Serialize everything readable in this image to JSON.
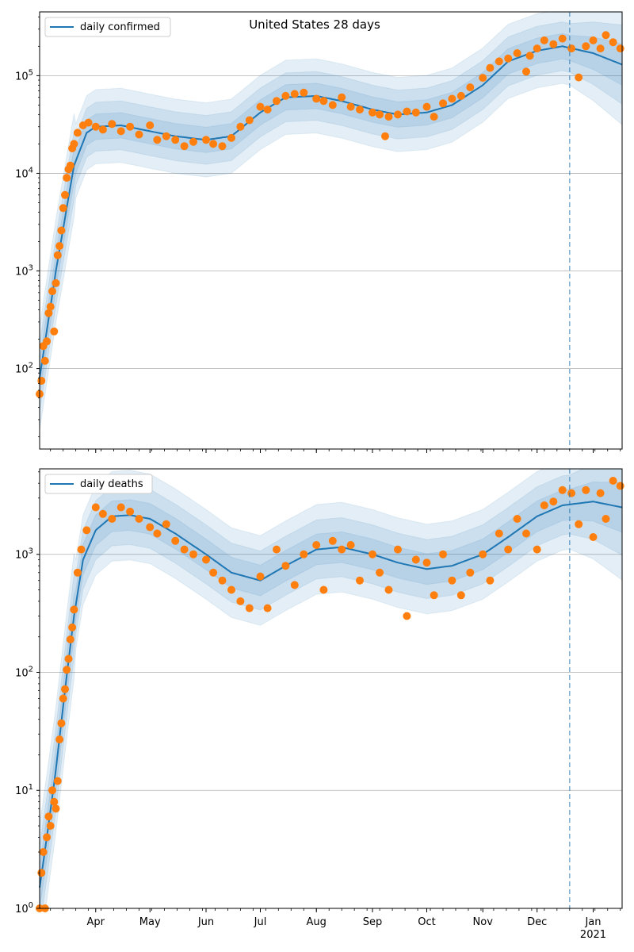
{
  "figure": {
    "title": "United States 28 days"
  },
  "chart_data": [
    {
      "type": "scatter",
      "title": "United States 28 days",
      "yscale": "log",
      "ylim": [
        15,
        450000
      ],
      "xlim": [
        "2020-03-01",
        "2021-01-17"
      ],
      "y_ticks": [
        100,
        1000,
        10000,
        100000
      ],
      "y_tick_labels": [
        {
          "base": "10",
          "exp": "2"
        },
        {
          "base": "10",
          "exp": "3"
        },
        {
          "base": "10",
          "exp": "4"
        },
        {
          "base": "10",
          "exp": "5"
        }
      ],
      "grid": "horizontal",
      "legend": {
        "entry": "daily confirmed",
        "placement": "top-left"
      },
      "forecast_start": "2020-12-19",
      "model_line": {
        "name": "daily confirmed",
        "color": "#1f77b4",
        "x": [
          "2020-03-01",
          "2020-03-10",
          "2020-03-20",
          "2020-03-27",
          "2020-04-01",
          "2020-04-15",
          "2020-05-01",
          "2020-05-15",
          "2020-06-01",
          "2020-06-15",
          "2020-07-01",
          "2020-07-15",
          "2020-08-01",
          "2020-08-15",
          "2020-09-01",
          "2020-09-15",
          "2020-10-01",
          "2020-10-15",
          "2020-11-01",
          "2020-11-15",
          "2020-12-01",
          "2020-12-15",
          "2021-01-01",
          "2021-01-17"
        ],
        "y": [
          80,
          1000,
          12000,
          26000,
          30000,
          31000,
          27000,
          24000,
          22000,
          24000,
          42000,
          60000,
          62000,
          55000,
          45000,
          40000,
          42000,
          50000,
          80000,
          140000,
          180000,
          200000,
          170000,
          130000
        ]
      },
      "points": {
        "color": "#ff7f0e",
        "x": [
          "2020-03-01",
          "2020-03-02",
          "2020-03-03",
          "2020-03-04",
          "2020-03-05",
          "2020-03-06",
          "2020-03-07",
          "2020-03-08",
          "2020-03-09",
          "2020-03-10",
          "2020-03-11",
          "2020-03-12",
          "2020-03-13",
          "2020-03-14",
          "2020-03-15",
          "2020-03-16",
          "2020-03-17",
          "2020-03-18",
          "2020-03-19",
          "2020-03-20",
          "2020-03-22",
          "2020-03-25",
          "2020-03-28",
          "2020-04-01",
          "2020-04-05",
          "2020-04-10",
          "2020-04-15",
          "2020-04-20",
          "2020-04-25",
          "2020-05-01",
          "2020-05-05",
          "2020-05-10",
          "2020-05-15",
          "2020-05-20",
          "2020-05-25",
          "2020-06-01",
          "2020-06-05",
          "2020-06-10",
          "2020-06-15",
          "2020-06-20",
          "2020-06-25",
          "2020-07-01",
          "2020-07-05",
          "2020-07-10",
          "2020-07-15",
          "2020-07-20",
          "2020-07-25",
          "2020-08-01",
          "2020-08-05",
          "2020-08-10",
          "2020-08-15",
          "2020-08-20",
          "2020-08-25",
          "2020-09-01",
          "2020-09-05",
          "2020-09-08",
          "2020-09-10",
          "2020-09-15",
          "2020-09-20",
          "2020-09-25",
          "2020-10-01",
          "2020-10-05",
          "2020-10-10",
          "2020-10-15",
          "2020-10-20",
          "2020-10-25",
          "2020-11-01",
          "2020-11-05",
          "2020-11-10",
          "2020-11-15",
          "2020-11-20",
          "2020-11-25",
          "2020-11-27",
          "2020-12-01",
          "2020-12-05",
          "2020-12-10",
          "2020-12-15",
          "2020-12-20",
          "2020-12-24",
          "2020-12-28",
          "2021-01-01",
          "2021-01-05",
          "2021-01-08",
          "2021-01-12",
          "2021-01-16"
        ],
        "y": [
          55,
          75,
          170,
          120,
          190,
          370,
          430,
          620,
          240,
          750,
          1450,
          1800,
          2600,
          4400,
          6000,
          9000,
          11000,
          12000,
          18000,
          20000,
          26000,
          31000,
          33000,
          30000,
          28000,
          32000,
          27000,
          30000,
          25000,
          31000,
          22000,
          24000,
          22000,
          19000,
          21000,
          22000,
          20000,
          19000,
          23000,
          30000,
          35000,
          48000,
          45000,
          55000,
          62000,
          65000,
          67000,
          58000,
          55000,
          50000,
          60000,
          48000,
          45000,
          42000,
          40000,
          24000,
          38000,
          40000,
          43000,
          42000,
          48000,
          38000,
          52000,
          58000,
          62000,
          76000,
          95000,
          120000,
          140000,
          150000,
          170000,
          110000,
          160000,
          190000,
          230000,
          210000,
          240000,
          190000,
          96000,
          200000,
          230000,
          190000,
          260000,
          220000,
          190000
        ]
      }
    },
    {
      "type": "scatter",
      "yscale": "log",
      "ylim": [
        1,
        5300
      ],
      "xlim": [
        "2020-03-01",
        "2021-01-17"
      ],
      "y_ticks": [
        1,
        10,
        100,
        1000
      ],
      "y_tick_labels": [
        {
          "base": "10",
          "exp": "0"
        },
        {
          "base": "10",
          "exp": "1"
        },
        {
          "base": "10",
          "exp": "2"
        },
        {
          "base": "10",
          "exp": "3"
        }
      ],
      "x_ticks": [
        "2020-04-01",
        "2020-05-01",
        "2020-06-01",
        "2020-07-01",
        "2020-08-01",
        "2020-09-01",
        "2020-10-01",
        "2020-11-01",
        "2020-12-01",
        "2021-01-01"
      ],
      "x_tick_labels": [
        "Apr",
        "May",
        "Jun",
        "Jul",
        "Aug",
        "Sep",
        "Oct",
        "Nov",
        "Dec",
        "Jan"
      ],
      "x_year_label": "2021",
      "grid": "horizontal",
      "legend": {
        "entry": "daily deaths",
        "placement": "top-left"
      },
      "forecast_start": "2020-12-19",
      "model_line": {
        "name": "daily deaths",
        "color": "#1f77b4",
        "x": [
          "2020-03-01",
          "2020-03-05",
          "2020-03-10",
          "2020-03-15",
          "2020-03-20",
          "2020-03-25",
          "2020-04-01",
          "2020-04-10",
          "2020-04-20",
          "2020-05-01",
          "2020-05-15",
          "2020-06-01",
          "2020-06-15",
          "2020-07-01",
          "2020-07-15",
          "2020-08-01",
          "2020-08-15",
          "2020-09-01",
          "2020-09-15",
          "2020-10-01",
          "2020-10-15",
          "2020-11-01",
          "2020-11-15",
          "2020-12-01",
          "2020-12-15",
          "2021-01-01",
          "2021-01-17"
        ],
        "y": [
          1.5,
          4,
          15,
          70,
          300,
          900,
          1600,
          2100,
          2150,
          2000,
          1500,
          1000,
          700,
          600,
          800,
          1100,
          1150,
          1000,
          850,
          750,
          800,
          1000,
          1400,
          2100,
          2600,
          2800,
          2500
        ]
      },
      "points": {
        "color": "#ff7f0e",
        "x": [
          "2020-03-01",
          "2020-03-02",
          "2020-03-03",
          "2020-03-04",
          "2020-03-05",
          "2020-03-06",
          "2020-03-07",
          "2020-03-08",
          "2020-03-09",
          "2020-03-10",
          "2020-03-11",
          "2020-03-12",
          "2020-03-13",
          "2020-03-14",
          "2020-03-15",
          "2020-03-16",
          "2020-03-17",
          "2020-03-18",
          "2020-03-19",
          "2020-03-20",
          "2020-03-22",
          "2020-03-24",
          "2020-03-27",
          "2020-04-01",
          "2020-04-05",
          "2020-04-10",
          "2020-04-15",
          "2020-04-20",
          "2020-04-25",
          "2020-05-01",
          "2020-05-05",
          "2020-05-10",
          "2020-05-15",
          "2020-05-20",
          "2020-05-25",
          "2020-06-01",
          "2020-06-05",
          "2020-06-10",
          "2020-06-15",
          "2020-06-20",
          "2020-06-25",
          "2020-07-01",
          "2020-07-05",
          "2020-07-10",
          "2020-07-15",
          "2020-07-20",
          "2020-07-25",
          "2020-08-01",
          "2020-08-05",
          "2020-08-10",
          "2020-08-15",
          "2020-08-20",
          "2020-08-25",
          "2020-09-01",
          "2020-09-05",
          "2020-09-10",
          "2020-09-15",
          "2020-09-20",
          "2020-09-25",
          "2020-10-01",
          "2020-10-05",
          "2020-10-10",
          "2020-10-15",
          "2020-10-20",
          "2020-10-25",
          "2020-11-01",
          "2020-11-05",
          "2020-11-10",
          "2020-11-15",
          "2020-11-20",
          "2020-11-25",
          "2020-12-01",
          "2020-12-05",
          "2020-12-10",
          "2020-12-15",
          "2020-12-20",
          "2020-12-24",
          "2020-12-28",
          "2021-01-01",
          "2021-01-05",
          "2021-01-08",
          "2021-01-12",
          "2021-01-16"
        ],
        "y": [
          1,
          2,
          3,
          1,
          4,
          6,
          5,
          10,
          8,
          7,
          12,
          27,
          37,
          60,
          72,
          105,
          130,
          190,
          240,
          340,
          700,
          1100,
          1600,
          2500,
          2200,
          2000,
          2500,
          2300,
          2000,
          1700,
          1500,
          1800,
          1300,
          1100,
          1000,
          900,
          700,
          600,
          500,
          400,
          350,
          650,
          350,
          1100,
          800,
          550,
          1000,
          1200,
          500,
          1300,
          1100,
          1200,
          600,
          1000,
          700,
          500,
          1100,
          300,
          900,
          850,
          450,
          1000,
          600,
          450,
          700,
          1000,
          600,
          1500,
          1100,
          2000,
          1500,
          1100,
          2600,
          2800,
          3500,
          3300,
          1800,
          3500,
          1400,
          3300,
          2000,
          4200,
          3800
        ]
      }
    }
  ]
}
